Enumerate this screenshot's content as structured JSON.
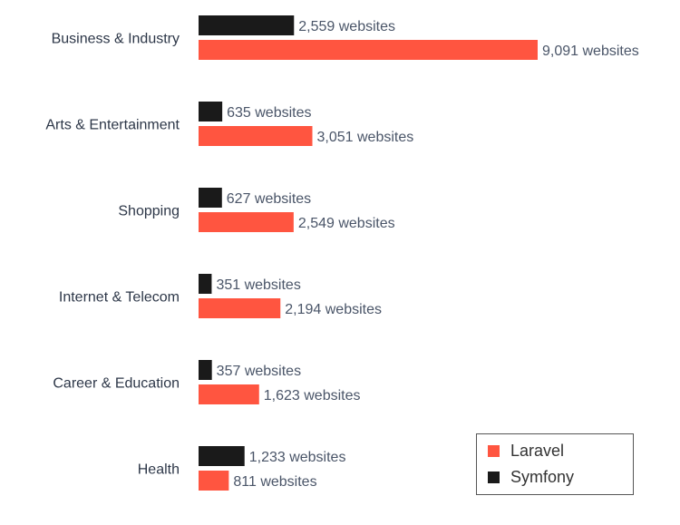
{
  "chart_data": {
    "type": "bar",
    "orientation": "horizontal",
    "categories": [
      "Business & Industry",
      "Arts & Entertainment",
      "Shopping",
      "Internet & Telecom",
      "Career & Education",
      "Health"
    ],
    "series": [
      {
        "name": "Symfony",
        "color": "#1a1a1a",
        "values": [
          2559,
          635,
          627,
          351,
          357,
          1233
        ],
        "labels": [
          "2,559 websites",
          "635 websites",
          "627 websites",
          "351 websites",
          "357 websites",
          "1,233 websites"
        ]
      },
      {
        "name": "Laravel",
        "color": "#ff5540",
        "values": [
          9091,
          3051,
          2549,
          2194,
          1623,
          811
        ],
        "labels": [
          "9,091 websites",
          "3,051 websites",
          "2,549 websites",
          "2,194 websites",
          "1,623 websites",
          "811 websites"
        ]
      }
    ],
    "title": "",
    "xlabel": "",
    "ylabel": "",
    "grid": false,
    "legend_placement": "bottom-right"
  },
  "legend": {
    "items": [
      {
        "label": "Laravel",
        "color": "#ff5540"
      },
      {
        "label": "Symfony",
        "color": "#1a1a1a"
      }
    ]
  }
}
